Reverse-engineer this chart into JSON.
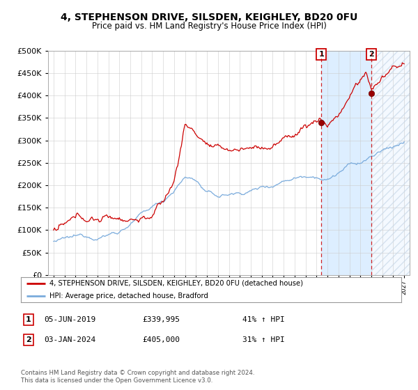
{
  "title": "4, STEPHENSON DRIVE, SILSDEN, KEIGHLEY, BD20 0FU",
  "subtitle": "Price paid vs. HM Land Registry's House Price Index (HPI)",
  "red_label": "4, STEPHENSON DRIVE, SILSDEN, KEIGHLEY, BD20 0FU (detached house)",
  "blue_label": "HPI: Average price, detached house, Bradford",
  "marker1_date": 2019.43,
  "marker1_value": 339995,
  "marker1_label": "05-JUN-2019",
  "marker1_price": "£339,995",
  "marker1_hpi": "41% ↑ HPI",
  "marker2_date": 2024.01,
  "marker2_value": 405000,
  "marker2_label": "03-JAN-2024",
  "marker2_price": "£405,000",
  "marker2_hpi": "31% ↑ HPI",
  "vline1_date": 2019.43,
  "vline2_date": 2024.01,
  "ylim": [
    0,
    500000
  ],
  "xlim_start": 1994.5,
  "xlim_end": 2027.5,
  "footer1": "Contains HM Land Registry data © Crown copyright and database right 2024.",
  "footer2": "This data is licensed under the Open Government Licence v3.0.",
  "red_color": "#cc0000",
  "blue_color": "#7aabdc",
  "shade_color": "#ddeeff",
  "hatch_color": "#ccddee"
}
